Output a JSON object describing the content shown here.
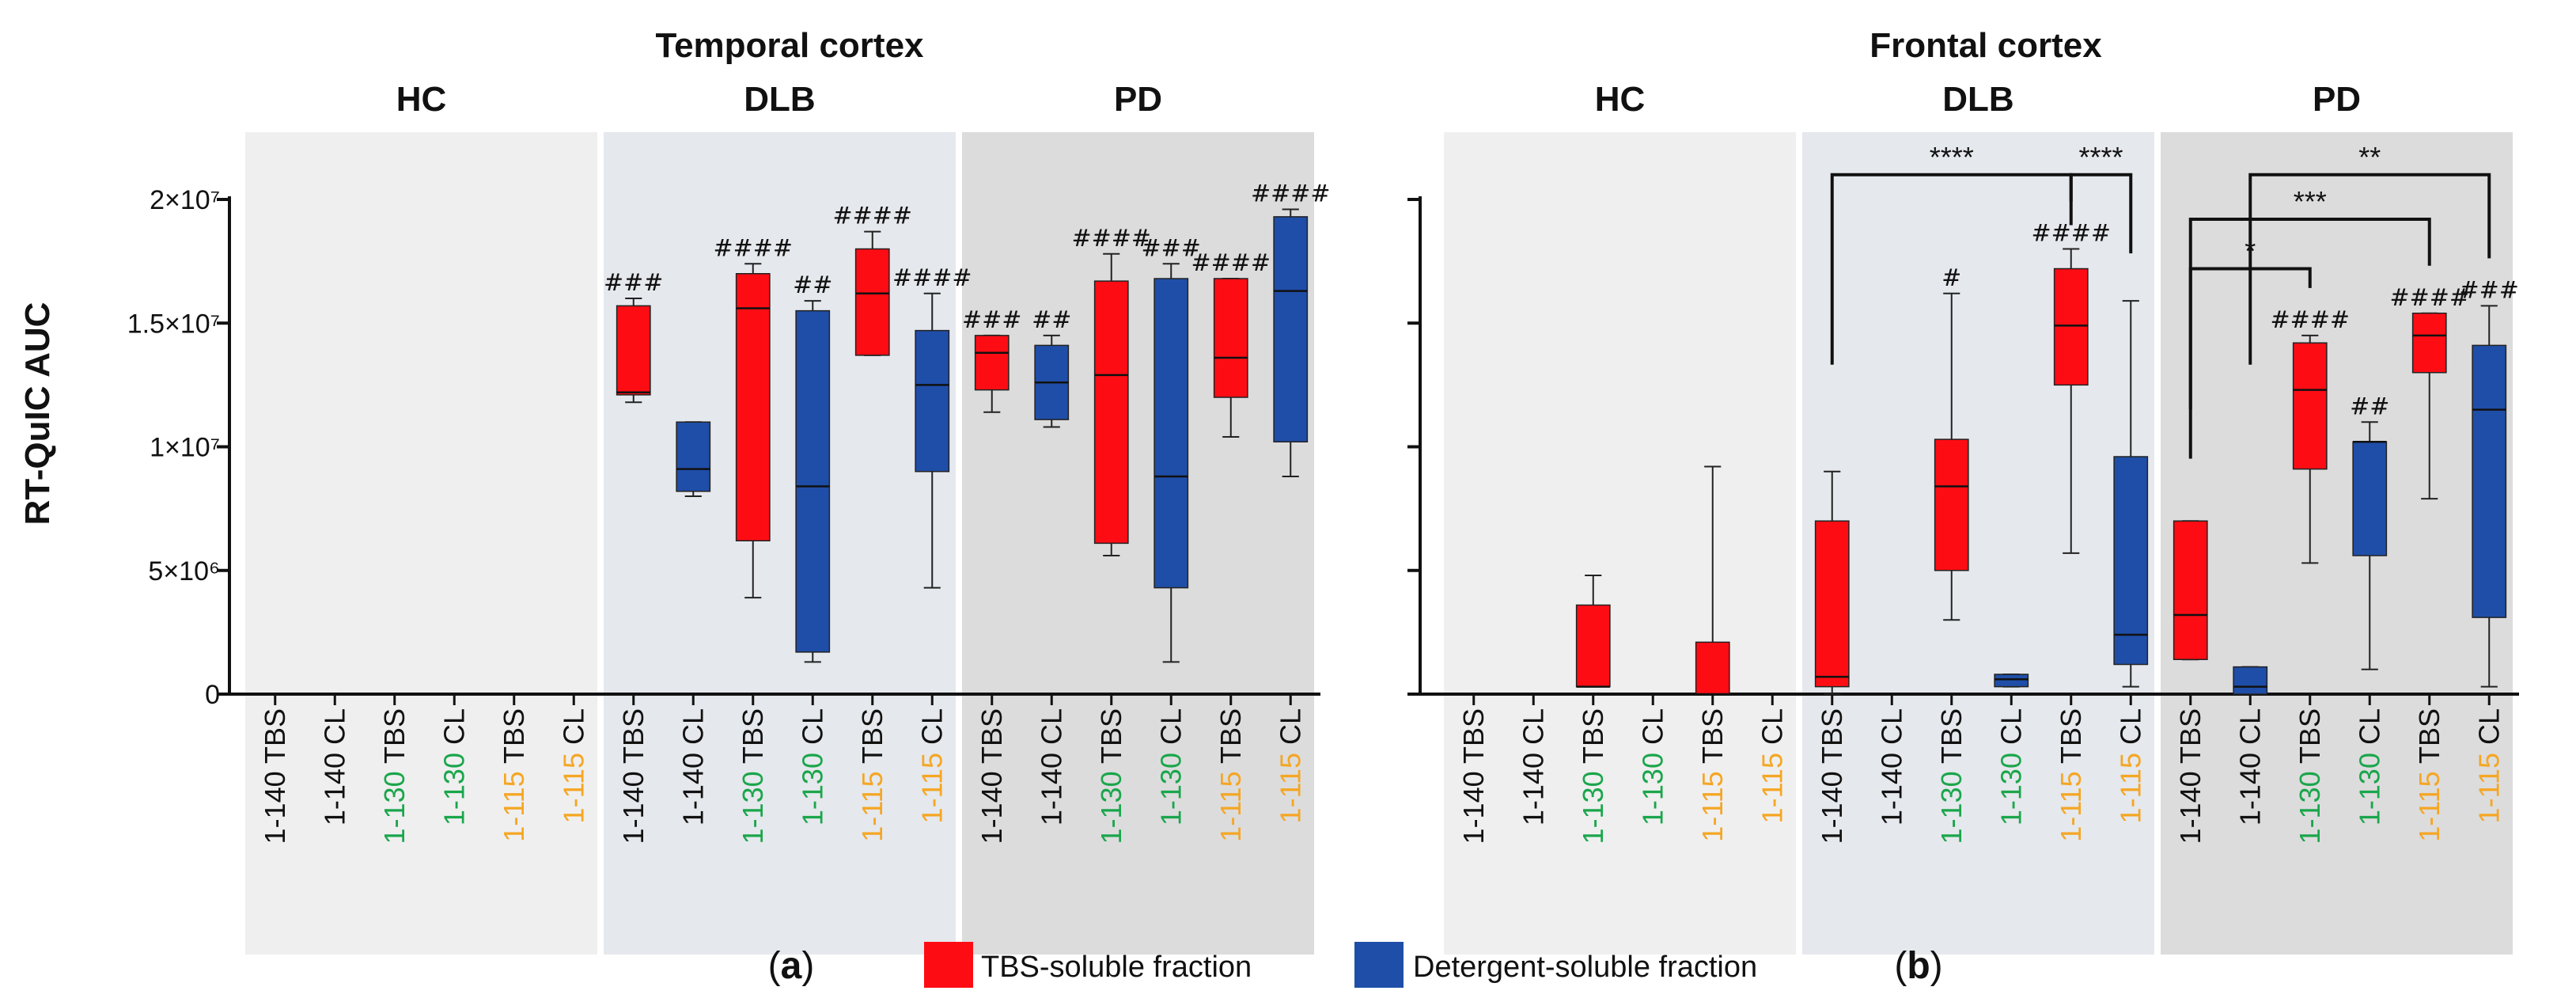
{
  "chart_data": [
    {
      "type": "boxplot",
      "panel_letter": "a",
      "title": "Temporal cortex",
      "ylabel": "RT-QuIC AUC",
      "ylim": [
        0,
        20000000
      ],
      "yticks": [
        {
          "value": 0,
          "label": "0"
        },
        {
          "value": 5000000,
          "label": "5×10⁶"
        },
        {
          "value": 10000000,
          "label": "1×10⁷"
        },
        {
          "value": 15000000,
          "label": "1.5×10⁷"
        },
        {
          "value": 20000000,
          "label": "2×10⁷"
        }
      ],
      "groups": [
        {
          "name": "HC",
          "shade": "#efefef",
          "start": 0,
          "end": 6
        },
        {
          "name": "DLB",
          "shade": "#e5e8ec",
          "start": 6,
          "end": 12
        },
        {
          "name": "PD",
          "shade": "#dcdcdd",
          "start": 12,
          "end": 18
        }
      ],
      "categories": [
        {
          "prefix": "1-140",
          "suffix": " TBS",
          "fraction": "TBS",
          "prefix_color": "#111111",
          "box": null,
          "annotation": ""
        },
        {
          "prefix": "1-140",
          "suffix": " CL",
          "fraction": "CL",
          "prefix_color": "#111111",
          "box": null,
          "annotation": ""
        },
        {
          "prefix": "1-130",
          "suffix": " TBS",
          "fraction": "TBS",
          "prefix_color": "#1aa64b",
          "box": null,
          "annotation": ""
        },
        {
          "prefix": "1-130",
          "suffix": " CL",
          "fraction": "CL",
          "prefix_color": "#1aa64b",
          "box": null,
          "annotation": ""
        },
        {
          "prefix": "1-115",
          "suffix": " TBS",
          "fraction": "TBS",
          "prefix_color": "#f5a623",
          "box": null,
          "annotation": ""
        },
        {
          "prefix": "1-115",
          "suffix": " CL",
          "fraction": "CL",
          "prefix_color": "#f5a623",
          "box": null,
          "annotation": ""
        },
        {
          "prefix": "1-140",
          "suffix": " TBS",
          "fraction": "TBS",
          "prefix_color": "#111111",
          "box": {
            "min": 11800000,
            "q1": 12100000,
            "median": 12200000,
            "q3": 15700000,
            "max": 16000000
          },
          "annotation": "###"
        },
        {
          "prefix": "1-140",
          "suffix": " CL",
          "fraction": "CL",
          "prefix_color": "#111111",
          "box": {
            "min": 8000000,
            "q1": 8200000,
            "median": 9100000,
            "q3": 11000000,
            "max": 11000000
          },
          "annotation": ""
        },
        {
          "prefix": "1-130",
          "suffix": " TBS",
          "fraction": "TBS",
          "prefix_color": "#1aa64b",
          "box": {
            "min": 3900000,
            "q1": 6200000,
            "median": 15600000,
            "q3": 17000000,
            "max": 17400000
          },
          "annotation": "####"
        },
        {
          "prefix": "1-130",
          "suffix": " CL",
          "fraction": "CL",
          "prefix_color": "#1aa64b",
          "box": {
            "min": 1300000,
            "q1": 1700000,
            "median": 8400000,
            "q3": 15500000,
            "max": 15900000
          },
          "annotation": "##"
        },
        {
          "prefix": "1-115",
          "suffix": " TBS",
          "fraction": "TBS",
          "prefix_color": "#f5a623",
          "box": {
            "min": 13700000,
            "q1": 13700000,
            "median": 16200000,
            "q3": 18000000,
            "max": 18700000
          },
          "annotation": "####"
        },
        {
          "prefix": "1-115",
          "suffix": " CL",
          "fraction": "CL",
          "prefix_color": "#f5a623",
          "box": {
            "min": 4300000,
            "q1": 9000000,
            "median": 12500000,
            "q3": 14700000,
            "max": 16200000
          },
          "annotation": "####"
        },
        {
          "prefix": "1-140",
          "suffix": " TBS",
          "fraction": "TBS",
          "prefix_color": "#111111",
          "box": {
            "min": 11400000,
            "q1": 12300000,
            "median": 13800000,
            "q3": 14500000,
            "max": 14500000
          },
          "annotation": "###"
        },
        {
          "prefix": "1-140",
          "suffix": " CL",
          "fraction": "CL",
          "prefix_color": "#111111",
          "box": {
            "min": 10800000,
            "q1": 11100000,
            "median": 12600000,
            "q3": 14100000,
            "max": 14500000
          },
          "annotation": "##"
        },
        {
          "prefix": "1-130",
          "suffix": " TBS",
          "fraction": "TBS",
          "prefix_color": "#1aa64b",
          "box": {
            "min": 5600000,
            "q1": 6100000,
            "median": 12900000,
            "q3": 16700000,
            "max": 17800000
          },
          "annotation": "####"
        },
        {
          "prefix": "1-130",
          "suffix": " CL",
          "fraction": "CL",
          "prefix_color": "#1aa64b",
          "box": {
            "min": 1300000,
            "q1": 4300000,
            "median": 8800000,
            "q3": 16800000,
            "max": 17400000
          },
          "annotation": "###"
        },
        {
          "prefix": "1-115",
          "suffix": " TBS",
          "fraction": "TBS",
          "prefix_color": "#f5a623",
          "box": {
            "min": 10400000,
            "q1": 12000000,
            "median": 13600000,
            "q3": 16800000,
            "max": 16800000
          },
          "annotation": "####"
        },
        {
          "prefix": "1-115",
          "suffix": " CL",
          "fraction": "CL",
          "prefix_color": "#f5a623",
          "box": {
            "min": 8800000,
            "q1": 10200000,
            "median": 16300000,
            "q3": 19300000,
            "max": 19600000
          },
          "annotation": "####"
        }
      ],
      "brackets": []
    },
    {
      "type": "boxplot",
      "panel_letter": "b",
      "title": "Frontal cortex",
      "ylabel": "",
      "ylim": [
        0,
        20000000
      ],
      "yticks": [
        {
          "value": 0,
          "label": ""
        },
        {
          "value": 5000000,
          "label": ""
        },
        {
          "value": 10000000,
          "label": ""
        },
        {
          "value": 15000000,
          "label": ""
        },
        {
          "value": 20000000,
          "label": ""
        }
      ],
      "groups": [
        {
          "name": "HC",
          "shade": "#efefef",
          "start": 0,
          "end": 6
        },
        {
          "name": "DLB",
          "shade": "#e5e8ec",
          "start": 6,
          "end": 12
        },
        {
          "name": "PD",
          "shade": "#dcdcdd",
          "start": 12,
          "end": 18
        }
      ],
      "categories": [
        {
          "prefix": "1-140",
          "suffix": " TBS",
          "fraction": "TBS",
          "prefix_color": "#111111",
          "box": null,
          "annotation": ""
        },
        {
          "prefix": "1-140",
          "suffix": " CL",
          "fraction": "CL",
          "prefix_color": "#111111",
          "box": null,
          "annotation": ""
        },
        {
          "prefix": "1-130",
          "suffix": " TBS",
          "fraction": "TBS",
          "prefix_color": "#1aa64b",
          "box": {
            "min": 300000,
            "q1": 300000,
            "median": 300000,
            "q3": 3600000,
            "max": 4800000
          },
          "annotation": ""
        },
        {
          "prefix": "1-130",
          "suffix": " CL",
          "fraction": "CL",
          "prefix_color": "#1aa64b",
          "box": null,
          "annotation": ""
        },
        {
          "prefix": "1-115",
          "suffix": " TBS",
          "fraction": "TBS",
          "prefix_color": "#f5a623",
          "box": {
            "min": 0,
            "q1": 0,
            "median": 0,
            "q3": 2100000,
            "max": 9200000
          },
          "annotation": ""
        },
        {
          "prefix": "1-115",
          "suffix": " CL",
          "fraction": "CL",
          "prefix_color": "#f5a623",
          "box": null,
          "annotation": ""
        },
        {
          "prefix": "1-140",
          "suffix": " TBS",
          "fraction": "TBS",
          "prefix_color": "#111111",
          "box": {
            "min": 0,
            "q1": 300000,
            "median": 700000,
            "q3": 7000000,
            "max": 9000000
          },
          "annotation": ""
        },
        {
          "prefix": "1-140",
          "suffix": " CL",
          "fraction": "CL",
          "prefix_color": "#111111",
          "box": null,
          "annotation": ""
        },
        {
          "prefix": "1-130",
          "suffix": " TBS",
          "fraction": "TBS",
          "prefix_color": "#1aa64b",
          "box": {
            "min": 3000000,
            "q1": 5000000,
            "median": 8400000,
            "q3": 10300000,
            "max": 16200000
          },
          "annotation": "#"
        },
        {
          "prefix": "1-130",
          "suffix": " CL",
          "fraction": "CL",
          "prefix_color": "#1aa64b",
          "box": {
            "min": 300000,
            "q1": 300000,
            "median": 600000,
            "q3": 800000,
            "max": 800000
          },
          "annotation": ""
        },
        {
          "prefix": "1-115",
          "suffix": " TBS",
          "fraction": "TBS",
          "prefix_color": "#f5a623",
          "box": {
            "min": 5700000,
            "q1": 12500000,
            "median": 14900000,
            "q3": 17200000,
            "max": 18000000
          },
          "annotation": "####"
        },
        {
          "prefix": "1-115",
          "suffix": " CL",
          "fraction": "CL",
          "prefix_color": "#f5a623",
          "box": {
            "min": 300000,
            "q1": 1200000,
            "median": 2400000,
            "q3": 9600000,
            "max": 15900000
          },
          "annotation": ""
        },
        {
          "prefix": "1-140",
          "suffix": " TBS",
          "fraction": "TBS",
          "prefix_color": "#111111",
          "box": {
            "min": 1400000,
            "q1": 1400000,
            "median": 3200000,
            "q3": 7000000,
            "max": 7000000
          },
          "annotation": ""
        },
        {
          "prefix": "1-140",
          "suffix": " CL",
          "fraction": "CL",
          "prefix_color": "#111111",
          "box": {
            "min": 0,
            "q1": 0,
            "median": 300000,
            "q3": 1100000,
            "max": 1100000
          },
          "annotation": ""
        },
        {
          "prefix": "1-130",
          "suffix": " TBS",
          "fraction": "TBS",
          "prefix_color": "#1aa64b",
          "box": {
            "min": 5300000,
            "q1": 9100000,
            "median": 12300000,
            "q3": 14200000,
            "max": 14500000
          },
          "annotation": "####"
        },
        {
          "prefix": "1-130",
          "suffix": " CL",
          "fraction": "CL",
          "prefix_color": "#1aa64b",
          "box": {
            "min": 1000000,
            "q1": 5600000,
            "median": 10200000,
            "q3": 10200000,
            "max": 11000000
          },
          "annotation": "##"
        },
        {
          "prefix": "1-115",
          "suffix": " TBS",
          "fraction": "TBS",
          "prefix_color": "#f5a623",
          "box": {
            "min": 7900000,
            "q1": 13000000,
            "median": 14500000,
            "q3": 15400000,
            "max": 15400000
          },
          "annotation": "####"
        },
        {
          "prefix": "1-115",
          "suffix": " CL",
          "fraction": "CL",
          "prefix_color": "#f5a623",
          "box": {
            "min": 300000,
            "q1": 3100000,
            "median": 11500000,
            "q3": 14100000,
            "max": 15700000
          },
          "annotation": "###"
        }
      ],
      "brackets": [
        {
          "from": 6,
          "to": 10,
          "level": 21000000,
          "label": "****"
        },
        {
          "from": 10,
          "to": 11,
          "level": 21000000,
          "label": "****"
        },
        {
          "from": 12,
          "to": 14,
          "level": 17200000,
          "label": "*"
        },
        {
          "from": 12,
          "to": 16,
          "level": 19200000,
          "label": "***"
        },
        {
          "from": 13,
          "to": 17,
          "level": 21000000,
          "label": "**"
        }
      ]
    }
  ],
  "legend": [
    {
      "label": "TBS-soluble fraction",
      "color": "#fe0c14"
    },
    {
      "label": "Detergent-soluble fraction",
      "color": "#1f4ea8"
    }
  ],
  "colors": {
    "TBS": "#fe0c14",
    "CL": "#1f4ea8",
    "axis": "#111111"
  }
}
